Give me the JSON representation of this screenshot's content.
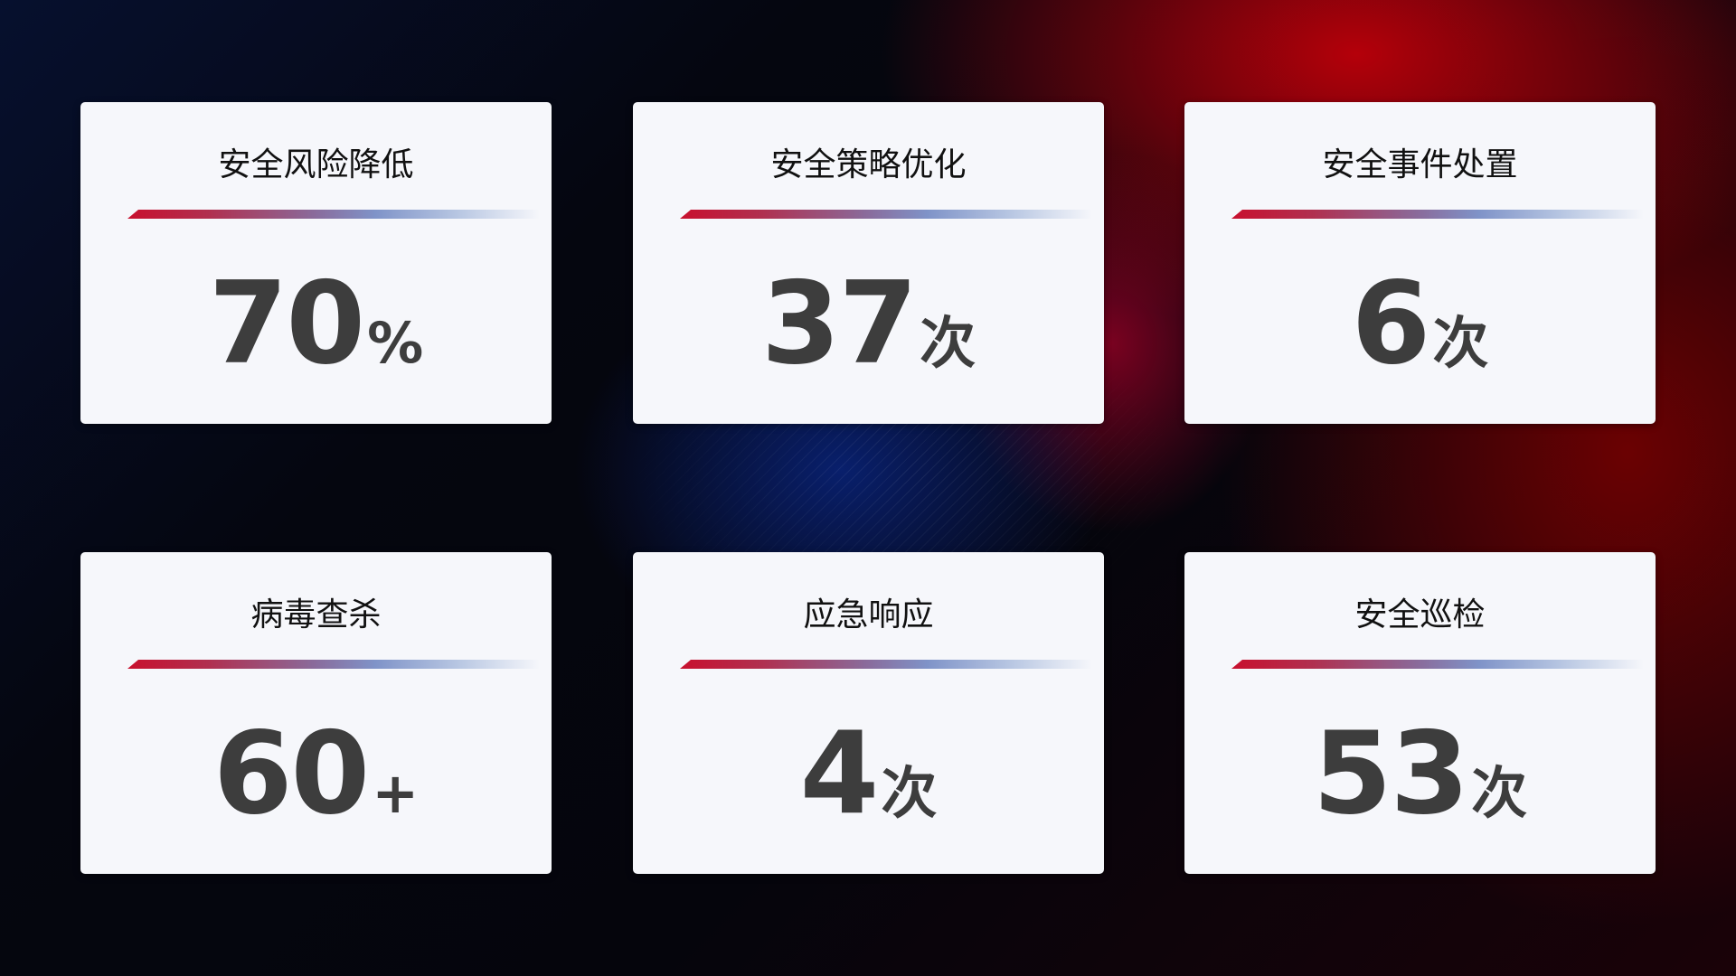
{
  "cards": [
    {
      "title": "安全风险降低",
      "value": "70",
      "unit": "%"
    },
    {
      "title": "安全策略优化",
      "value": "37",
      "unit": "次"
    },
    {
      "title": "安全事件处置",
      "value": "6",
      "unit": "次"
    },
    {
      "title": "病毒查杀",
      "value": "60",
      "unit": "+"
    },
    {
      "title": "应急响应",
      "value": "4",
      "unit": "次"
    },
    {
      "title": "安全巡检",
      "value": "53",
      "unit": "次"
    }
  ],
  "colors": {
    "accent_red": "#c8102e",
    "accent_blue": "#7f93c8",
    "card_bg": "#f6f7fb",
    "value_text": "#3d3d3d"
  }
}
